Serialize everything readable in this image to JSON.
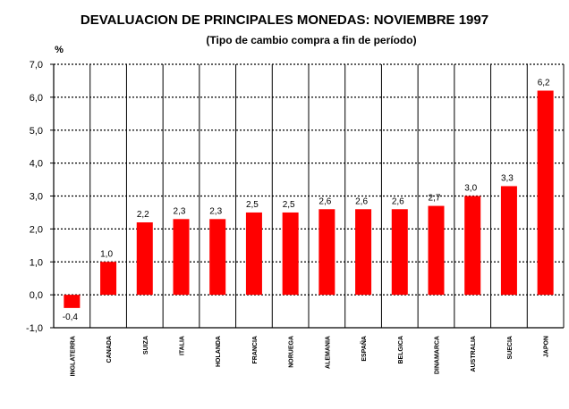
{
  "chart_data": {
    "type": "bar",
    "title": "DEVALUACION DE PRINCIPALES MONEDAS: NOVIEMBRE 1997",
    "subtitle": "(Tipo de cambio compra a fin de período)",
    "ylabel": "%",
    "xlabel": "",
    "ylim": [
      -1.0,
      7.0
    ],
    "yticks": [
      "-1,0",
      "0,0",
      "1,0",
      "2,0",
      "3,0",
      "4,0",
      "5,0",
      "6,0",
      "7,0"
    ],
    "ytick_values": [
      -1,
      0,
      1,
      2,
      3,
      4,
      5,
      6,
      7
    ],
    "grid": true,
    "bar_color": "#ff0000",
    "categories": [
      "INGLATERRA",
      "CANADA",
      "SUIZA",
      "ITALIA",
      "HOLANDA",
      "FRANCIA",
      "NORUEGA",
      "ALEMANIA",
      "ESPAÑA",
      "BELGICA",
      "DINAMARCA",
      "AUSTRALIA",
      "SUECIA",
      "JAPON"
    ],
    "values": [
      -0.4,
      1.0,
      2.2,
      2.3,
      2.3,
      2.5,
      2.5,
      2.6,
      2.6,
      2.6,
      2.7,
      3.0,
      3.3,
      6.2
    ],
    "value_labels": [
      "-0,4",
      "1,0",
      "2,2",
      "2,3",
      "2,3",
      "2,5",
      "2,5",
      "2,6",
      "2,6",
      "2,6",
      "2,7",
      "3,0",
      "3,3",
      "6,2"
    ]
  }
}
